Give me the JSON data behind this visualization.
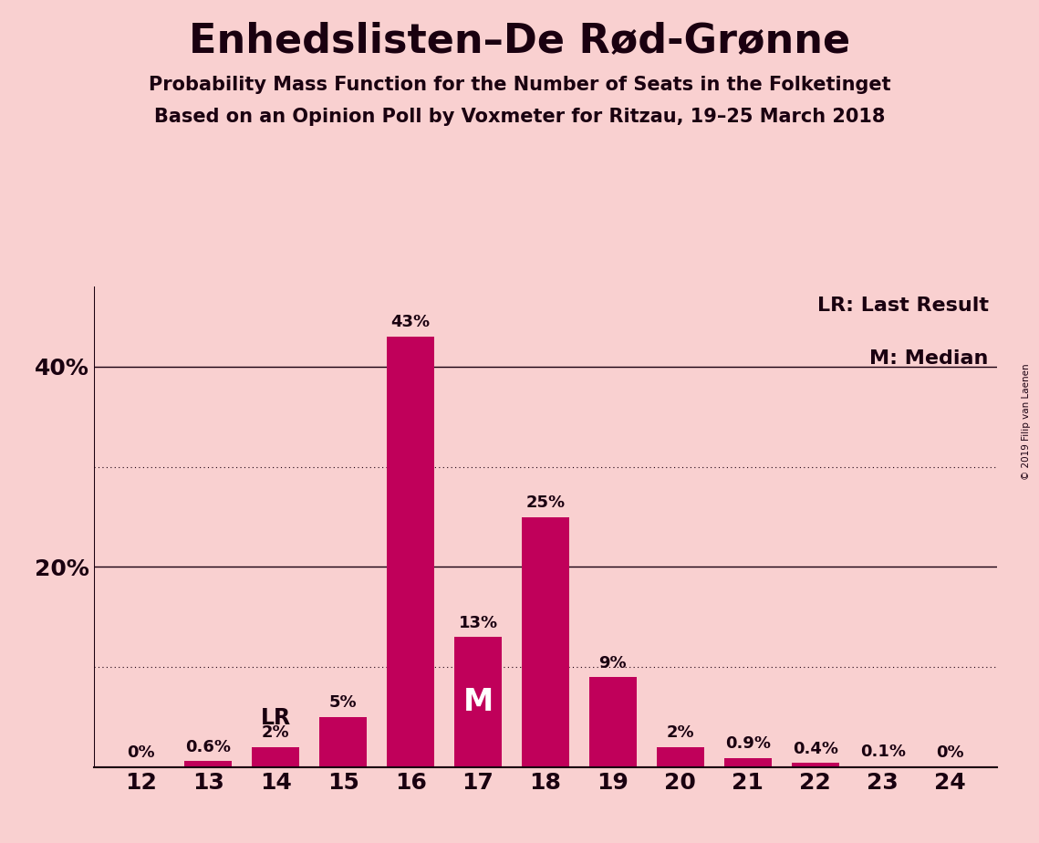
{
  "title": "Enhedslisten–De Rød-Grønne",
  "subtitle1": "Probability Mass Function for the Number of Seats in the Folketinget",
  "subtitle2": "Based on an Opinion Poll by Voxmeter for Ritzau, 19–25 March 2018",
  "copyright": "© 2019 Filip van Laenen",
  "seats": [
    12,
    13,
    14,
    15,
    16,
    17,
    18,
    19,
    20,
    21,
    22,
    23,
    24
  ],
  "values": [
    0.0,
    0.6,
    2.0,
    5.0,
    43.0,
    13.0,
    25.0,
    9.0,
    2.0,
    0.9,
    0.4,
    0.1,
    0.0
  ],
  "labels": [
    "0%",
    "0.6%",
    "2%",
    "5%",
    "43%",
    "13%",
    "25%",
    "9%",
    "2%",
    "0.9%",
    "0.4%",
    "0.1%",
    "0%"
  ],
  "bar_color": "#c0005a",
  "background_color": "#f9d0d0",
  "text_color": "#1a0010",
  "median_seat": 17,
  "lr_seat": 14,
  "legend_lr": "LR: Last Result",
  "legend_m": "M: Median",
  "ytick_solid": [
    20,
    40
  ],
  "ytick_solid_labels": [
    "20%",
    "40%"
  ],
  "ytick_dotted": [
    10,
    30
  ],
  "ylim": [
    0,
    48
  ],
  "bar_width": 0.7
}
